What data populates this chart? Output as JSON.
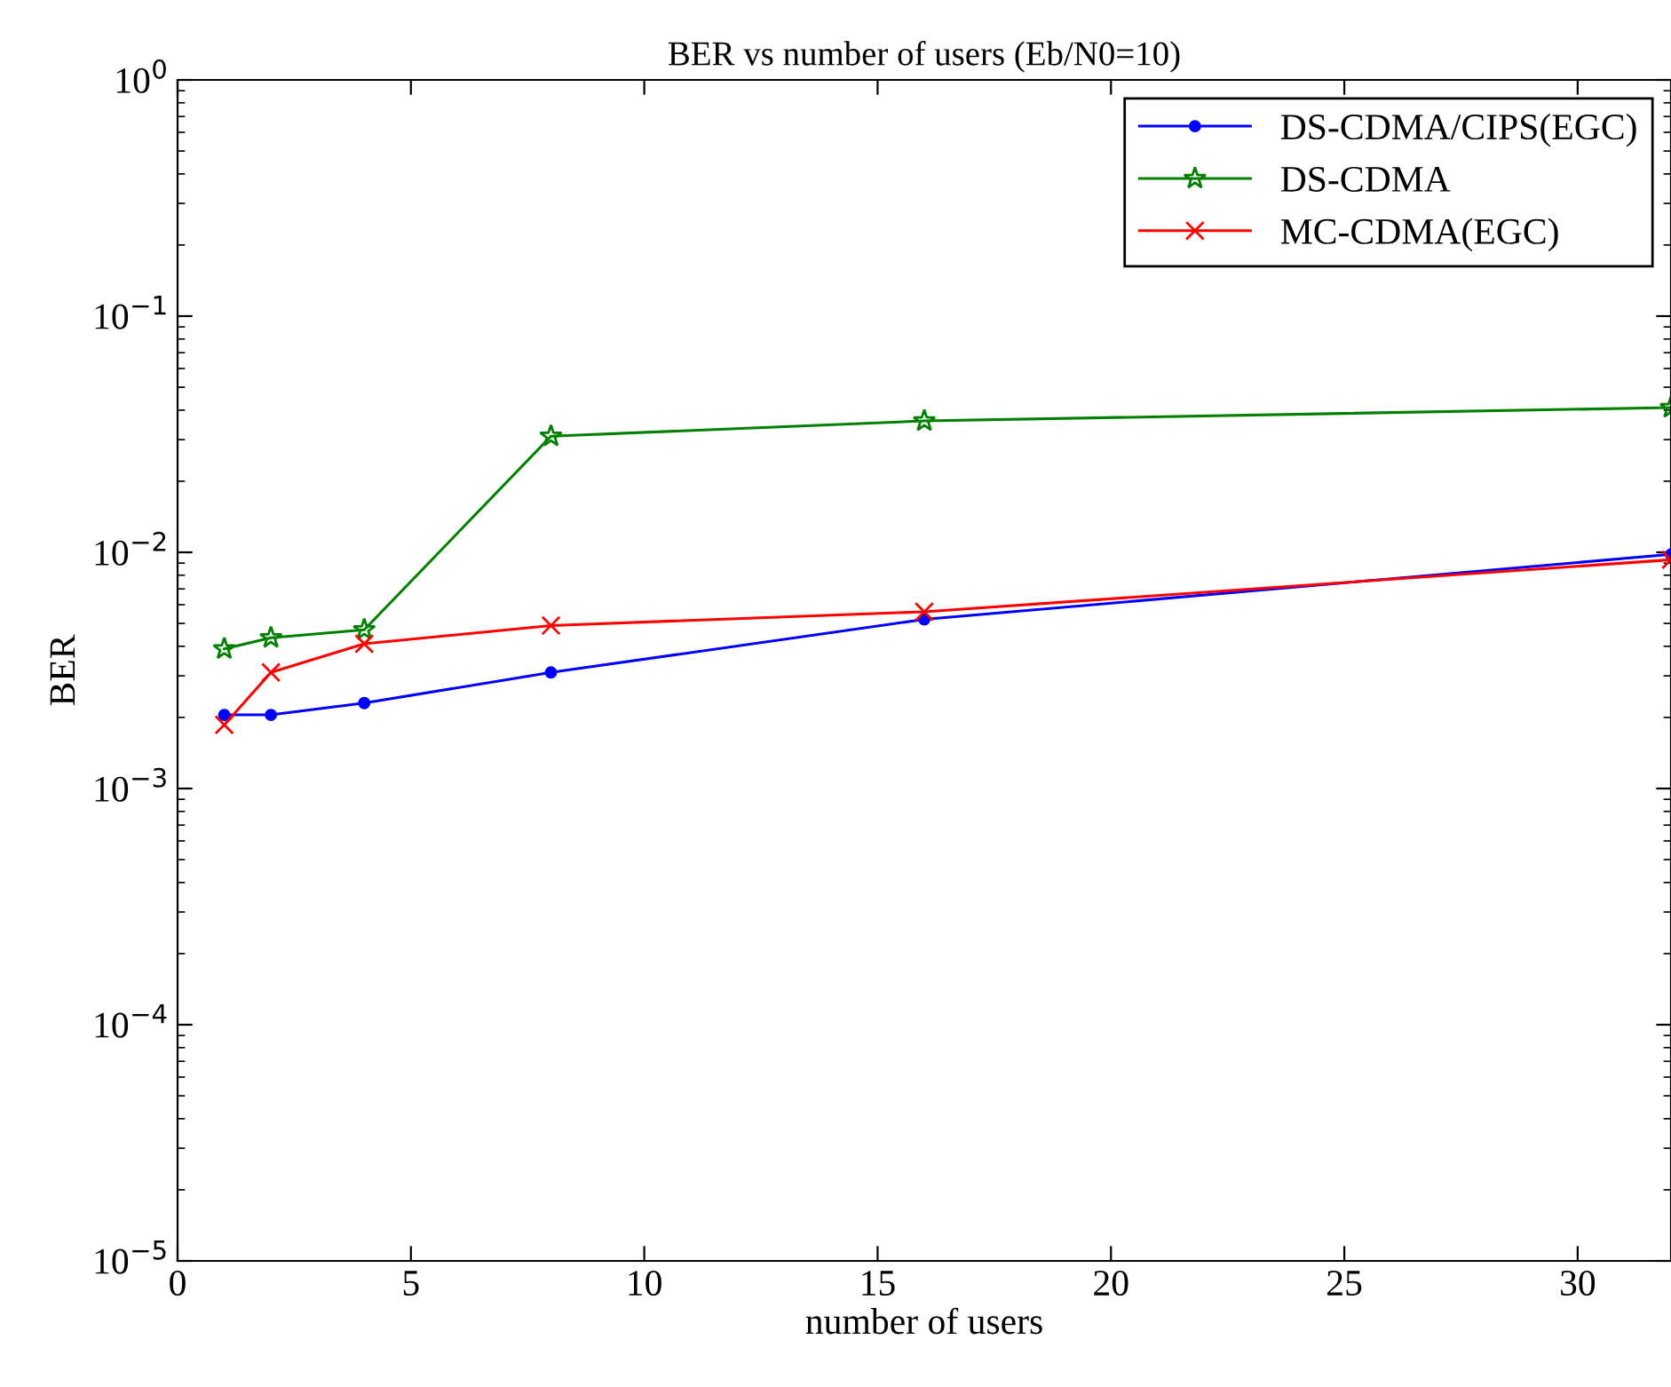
{
  "chart_data": {
    "type": "line",
    "title": "BER vs number of users (Eb/N0=10)",
    "xlabel": "number of users",
    "ylabel": "BER",
    "log": "y",
    "xlim": [
      0,
      32
    ],
    "xticks": [
      0,
      5,
      10,
      15,
      20,
      25,
      30
    ],
    "ylim": [
      1e-05,
      1
    ],
    "yticks": [
      {
        "value": 1e-05,
        "label": "10$^{−5}$"
      },
      {
        "value": 0.0001,
        "label": "10$^{−4}$"
      },
      {
        "value": 0.001,
        "label": "10$^{−3}$"
      },
      {
        "value": 0.01,
        "label": "10$^{−2}$"
      },
      {
        "value": 0.1,
        "label": "10$^{−1}$"
      },
      {
        "value": 1,
        "label": "10$^{0}$"
      }
    ],
    "grid": false,
    "legend": "top right",
    "x": [
      1,
      2,
      4,
      8,
      16,
      32
    ],
    "series": [
      {
        "name": "DS-CDMA/CIPS(EGC)",
        "color": "#0000ff",
        "marker": "circle",
        "values": [
          0.00205,
          0.00205,
          0.0023,
          0.0031,
          0.0052,
          0.0098
        ]
      },
      {
        "name": "DS-CDMA",
        "color": "#008000",
        "marker": "star",
        "values": [
          0.0039,
          0.00435,
          0.0047,
          0.031,
          0.036,
          0.041
        ]
      },
      {
        "name": "MC-CDMA(EGC)",
        "color": "#ff0000",
        "marker": "cross",
        "values": [
          0.00186,
          0.0031,
          0.0041,
          0.0049,
          0.0056,
          0.0093
        ]
      }
    ]
  }
}
